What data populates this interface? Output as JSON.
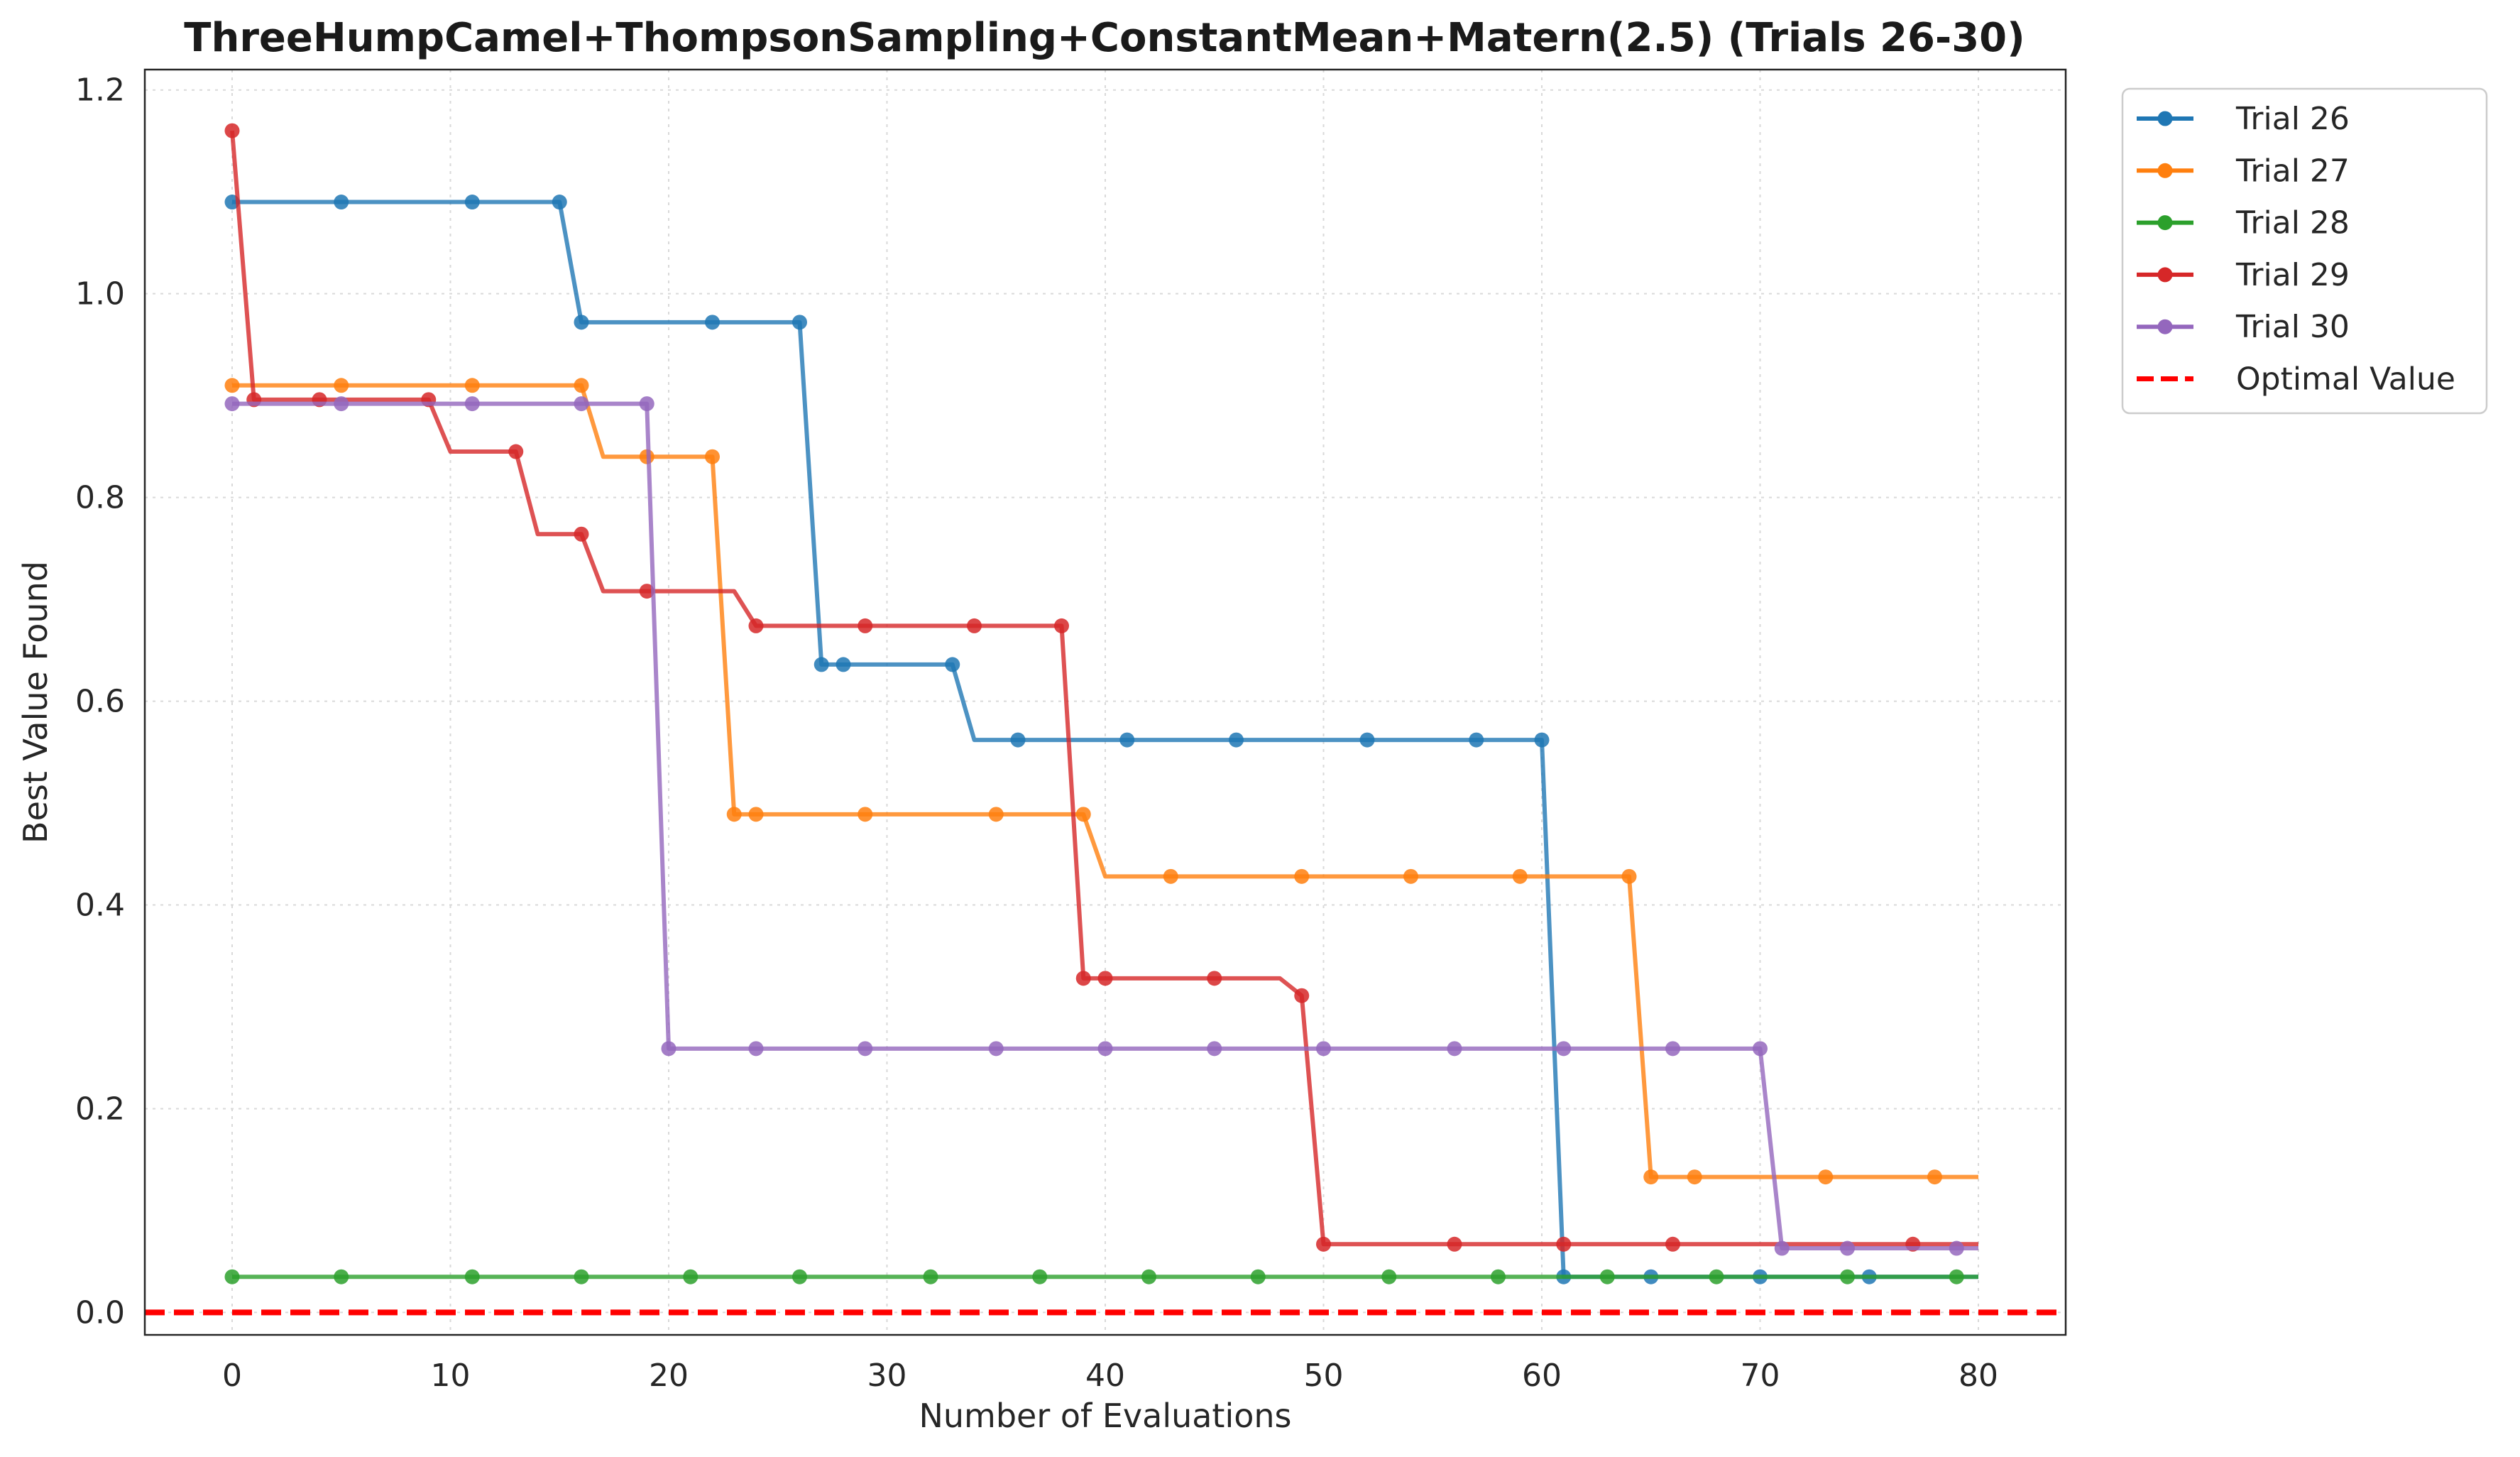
{
  "chart_data": {
    "type": "line",
    "title": "ThreeHumpCamel+ThompsonSampling+ConstantMean+Matern(2.5) (Trials 26-30)",
    "xlabel": "Number of Evaluations",
    "ylabel": "Best Value Found",
    "xlim": [
      -4,
      84
    ],
    "ylim": [
      -0.022,
      1.22
    ],
    "x_ticks": [
      0,
      10,
      20,
      30,
      40,
      50,
      60,
      70,
      80
    ],
    "y_ticks": [
      0.0,
      0.2,
      0.4,
      0.6,
      0.8,
      1.0,
      1.2
    ],
    "x_tick_labels": [
      "0",
      "10",
      "20",
      "30",
      "40",
      "50",
      "60",
      "70",
      "80"
    ],
    "y_tick_labels": [
      "0.0",
      "0.2",
      "0.4",
      "0.6",
      "0.8",
      "1.0",
      "1.2"
    ],
    "grid": true,
    "legend_position": "outside-top-right",
    "optimal_value": 0.0,
    "optimal_label": "Optimal Value",
    "optimal_color": "#ff0000",
    "series": [
      {
        "name": "Trial 26",
        "color": "#1f77b4",
        "steps": [
          [
            0,
            1.09
          ],
          [
            16,
            0.972
          ],
          [
            27,
            0.636
          ],
          [
            34,
            0.562
          ],
          [
            61,
            0.035
          ],
          [
            80,
            0.035
          ]
        ],
        "markers": [
          [
            0,
            1.09
          ],
          [
            5,
            1.09
          ],
          [
            11,
            1.09
          ],
          [
            15,
            1.09
          ],
          [
            16,
            0.972
          ],
          [
            22,
            0.972
          ],
          [
            26,
            0.972
          ],
          [
            27,
            0.636
          ],
          [
            28,
            0.636
          ],
          [
            33,
            0.636
          ],
          [
            36,
            0.562
          ],
          [
            41,
            0.562
          ],
          [
            46,
            0.562
          ],
          [
            52,
            0.562
          ],
          [
            57,
            0.562
          ],
          [
            60,
            0.562
          ],
          [
            61,
            0.035
          ],
          [
            65,
            0.035
          ],
          [
            70,
            0.035
          ],
          [
            75,
            0.035
          ]
        ]
      },
      {
        "name": "Trial 27",
        "color": "#ff7f0e",
        "steps": [
          [
            0,
            0.91
          ],
          [
            17,
            0.84
          ],
          [
            23,
            0.489
          ],
          [
            40,
            0.428
          ],
          [
            65,
            0.133
          ],
          [
            80,
            0.133
          ]
        ],
        "markers": [
          [
            0,
            0.91
          ],
          [
            5,
            0.91
          ],
          [
            11,
            0.91
          ],
          [
            16,
            0.91
          ],
          [
            19,
            0.84
          ],
          [
            22,
            0.84
          ],
          [
            23,
            0.489
          ],
          [
            24,
            0.489
          ],
          [
            29,
            0.489
          ],
          [
            35,
            0.489
          ],
          [
            39,
            0.489
          ],
          [
            43,
            0.428
          ],
          [
            49,
            0.428
          ],
          [
            54,
            0.428
          ],
          [
            59,
            0.428
          ],
          [
            64,
            0.428
          ],
          [
            65,
            0.133
          ],
          [
            67,
            0.133
          ],
          [
            73,
            0.133
          ],
          [
            78,
            0.133
          ]
        ]
      },
      {
        "name": "Trial 28",
        "color": "#2ca02c",
        "steps": [
          [
            0,
            0.035
          ],
          [
            80,
            0.035
          ]
        ],
        "markers": [
          [
            0,
            0.035
          ],
          [
            5,
            0.035
          ],
          [
            11,
            0.035
          ],
          [
            16,
            0.035
          ],
          [
            21,
            0.035
          ],
          [
            26,
            0.035
          ],
          [
            32,
            0.035
          ],
          [
            37,
            0.035
          ],
          [
            42,
            0.035
          ],
          [
            47,
            0.035
          ],
          [
            53,
            0.035
          ],
          [
            58,
            0.035
          ],
          [
            63,
            0.035
          ],
          [
            68,
            0.035
          ],
          [
            74,
            0.035
          ],
          [
            79,
            0.035
          ]
        ]
      },
      {
        "name": "Trial 29",
        "color": "#d62728",
        "steps": [
          [
            0,
            1.16
          ],
          [
            1,
            0.896
          ],
          [
            10,
            0.845
          ],
          [
            14,
            0.764
          ],
          [
            17,
            0.708
          ],
          [
            24,
            0.674
          ],
          [
            39,
            0.328
          ],
          [
            49,
            0.311
          ],
          [
            50,
            0.067
          ],
          [
            80,
            0.067
          ]
        ],
        "markers": [
          [
            0,
            1.16
          ],
          [
            1,
            0.896
          ],
          [
            4,
            0.896
          ],
          [
            9,
            0.896
          ],
          [
            13,
            0.845
          ],
          [
            16,
            0.764
          ],
          [
            19,
            0.708
          ],
          [
            24,
            0.674
          ],
          [
            29,
            0.674
          ],
          [
            34,
            0.674
          ],
          [
            38,
            0.674
          ],
          [
            39,
            0.328
          ],
          [
            40,
            0.328
          ],
          [
            45,
            0.328
          ],
          [
            49,
            0.311
          ],
          [
            50,
            0.067
          ],
          [
            56,
            0.067
          ],
          [
            61,
            0.067
          ],
          [
            66,
            0.067
          ],
          [
            77,
            0.067
          ]
        ]
      },
      {
        "name": "Trial 30",
        "color": "#9467bd",
        "steps": [
          [
            0,
            0.892
          ],
          [
            20,
            0.259
          ],
          [
            71,
            0.063
          ],
          [
            80,
            0.063
          ]
        ],
        "markers": [
          [
            0,
            0.892
          ],
          [
            5,
            0.892
          ],
          [
            11,
            0.892
          ],
          [
            16,
            0.892
          ],
          [
            19,
            0.892
          ],
          [
            20,
            0.259
          ],
          [
            24,
            0.259
          ],
          [
            29,
            0.259
          ],
          [
            35,
            0.259
          ],
          [
            40,
            0.259
          ],
          [
            45,
            0.259
          ],
          [
            50,
            0.259
          ],
          [
            56,
            0.259
          ],
          [
            61,
            0.259
          ],
          [
            66,
            0.259
          ],
          [
            70,
            0.259
          ],
          [
            71,
            0.063
          ],
          [
            74,
            0.063
          ],
          [
            79,
            0.063
          ]
        ]
      }
    ]
  }
}
